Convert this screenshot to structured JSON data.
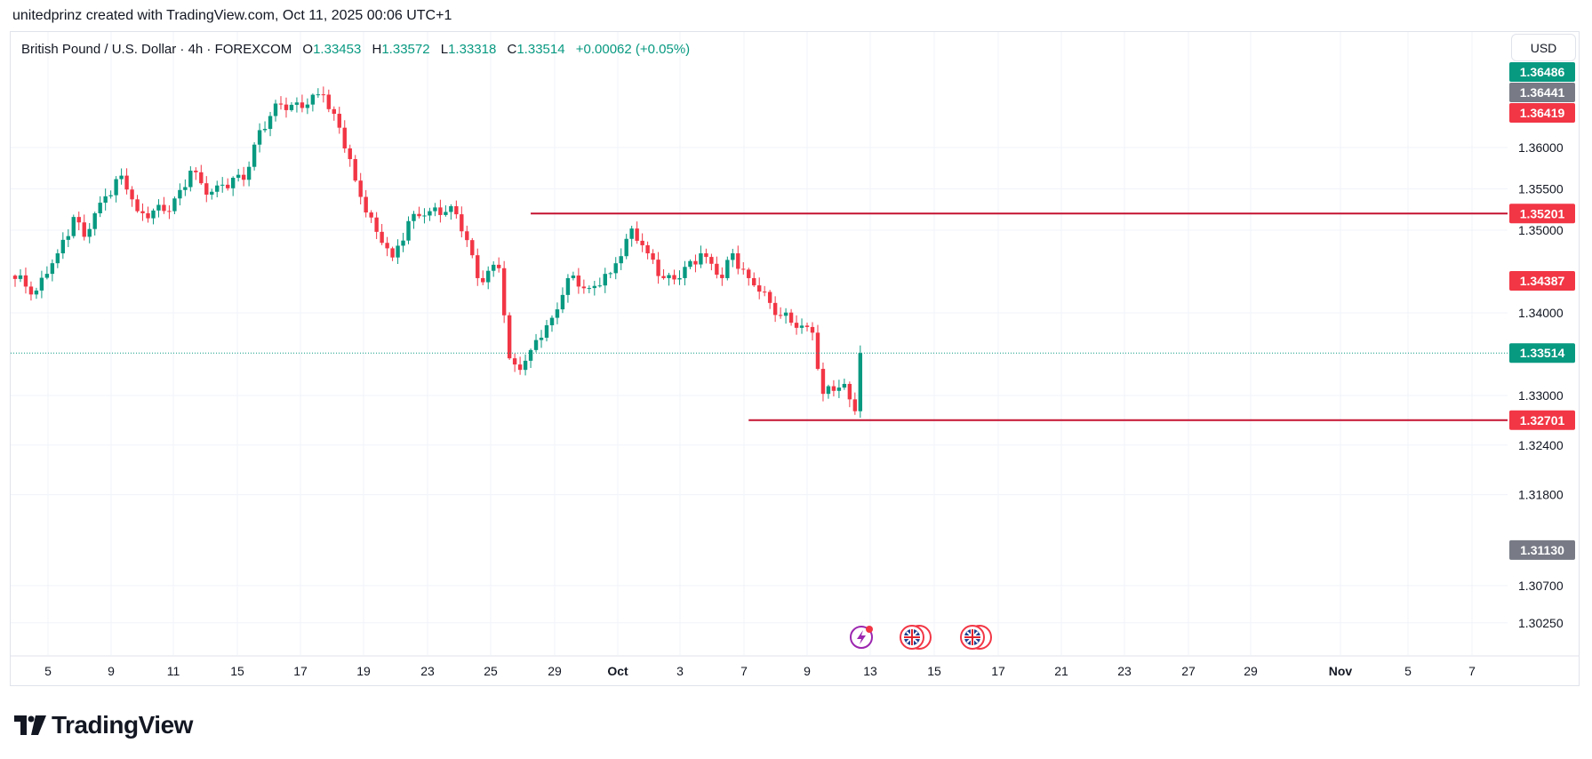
{
  "credit": "unitedprinz created with TradingView.com, Oct 11, 2025 00:06 UTC+1",
  "legend": {
    "symbol": "British Pound / U.S. Dollar · 4h · FOREXCOM",
    "o_label": "O",
    "o": "1.33453",
    "h_label": "H",
    "h": "1.33572",
    "l_label": "L",
    "l": "1.33318",
    "c_label": "C",
    "c": "1.33514",
    "change": "+0.00062 (+0.05%)"
  },
  "currency_button": "USD",
  "logo_text": "TradingView",
  "colors": {
    "up": "#089981",
    "down": "#f23645",
    "grid": "#f0f3fa",
    "line": "#c41230",
    "gray_tag": "#787b86"
  },
  "chart_data": {
    "type": "candlestick",
    "title": "British Pound / U.S. Dollar · 4h · FOREXCOM",
    "candle_count": 160,
    "close_points": [
      [
        0,
        1.3441
      ],
      [
        4,
        1.3427
      ],
      [
        8,
        1.3472
      ],
      [
        11,
        1.3516
      ],
      [
        13,
        1.3492
      ],
      [
        17,
        1.3541
      ],
      [
        20,
        1.3566
      ],
      [
        23,
        1.3523
      ],
      [
        29,
        1.3523
      ],
      [
        33,
        1.3572
      ],
      [
        36,
        1.3543
      ],
      [
        39,
        1.3555
      ],
      [
        43,
        1.3561
      ],
      [
        46,
        1.3621
      ],
      [
        50,
        1.3652
      ],
      [
        55,
        1.3652
      ],
      [
        58,
        1.3664
      ],
      [
        61,
        1.3624
      ],
      [
        64,
        1.356
      ],
      [
        68,
        1.3498
      ],
      [
        71,
        1.3467
      ],
      [
        74,
        1.3511
      ],
      [
        78,
        1.3523
      ],
      [
        82,
        1.3529
      ],
      [
        85,
        1.3488
      ],
      [
        87,
        1.3442
      ],
      [
        91,
        1.3454
      ],
      [
        93,
        1.3345
      ],
      [
        95,
        1.3331
      ],
      [
        97,
        1.3355
      ],
      [
        101,
        1.3394
      ],
      [
        104,
        1.3442
      ],
      [
        108,
        1.343
      ],
      [
        112,
        1.3448
      ],
      [
        116,
        1.3502
      ],
      [
        119,
        1.3472
      ],
      [
        122,
        1.3442
      ],
      [
        125,
        1.3442
      ],
      [
        129,
        1.3472
      ],
      [
        133,
        1.3442
      ],
      [
        135,
        1.3472
      ],
      [
        138,
        1.3442
      ],
      [
        142,
        1.3412
      ],
      [
        146,
        1.3388
      ],
      [
        150,
        1.3376
      ],
      [
        152,
        1.3302
      ],
      [
        156,
        1.3314
      ],
      [
        158,
        1.3281
      ],
      [
        159,
        1.33514
      ]
    ],
    "ylim": [
      1.2995,
      1.3685
    ],
    "y_ticks": [
      "1.36000",
      "1.35500",
      "1.35000",
      "1.34000",
      "1.33000",
      "1.32400",
      "1.31800",
      "1.30700",
      "1.30250"
    ],
    "x_ticks": [
      "5",
      "9",
      "11",
      "15",
      "17",
      "19",
      "23",
      "25",
      "29",
      "Oct",
      "3",
      "7",
      "9",
      "13",
      "15",
      "17",
      "21",
      "23",
      "27",
      "29",
      "Nov",
      "5",
      "7"
    ],
    "x_tick_bold": [
      "Oct",
      "Nov"
    ],
    "horizontal_lines": [
      {
        "price": 1.35201,
        "label": "1.35201",
        "start_candle": 97
      },
      {
        "price": 1.32701,
        "label": "1.32701",
        "start_candle": 138
      }
    ],
    "last_price": {
      "price": 1.33514,
      "label": "1.33514"
    },
    "price_tags": [
      {
        "price": 1.36486,
        "label": "1.36486",
        "kind": "up"
      },
      {
        "price": 1.36441,
        "label": "1.36441",
        "kind": "gray"
      },
      {
        "price": 1.36419,
        "label": "1.36419",
        "kind": "down"
      },
      {
        "price": 1.34387,
        "label": "1.34387",
        "kind": "down"
      },
      {
        "price": 1.3113,
        "label": "1.31130",
        "kind": "gray"
      }
    ],
    "events": [
      {
        "name": "economic-event",
        "icon": "lightning-icon"
      },
      {
        "name": "uk-event-1",
        "icon": "uk-flag-icon"
      },
      {
        "name": "uk-event-2",
        "icon": "uk-flag-icon"
      }
    ]
  }
}
